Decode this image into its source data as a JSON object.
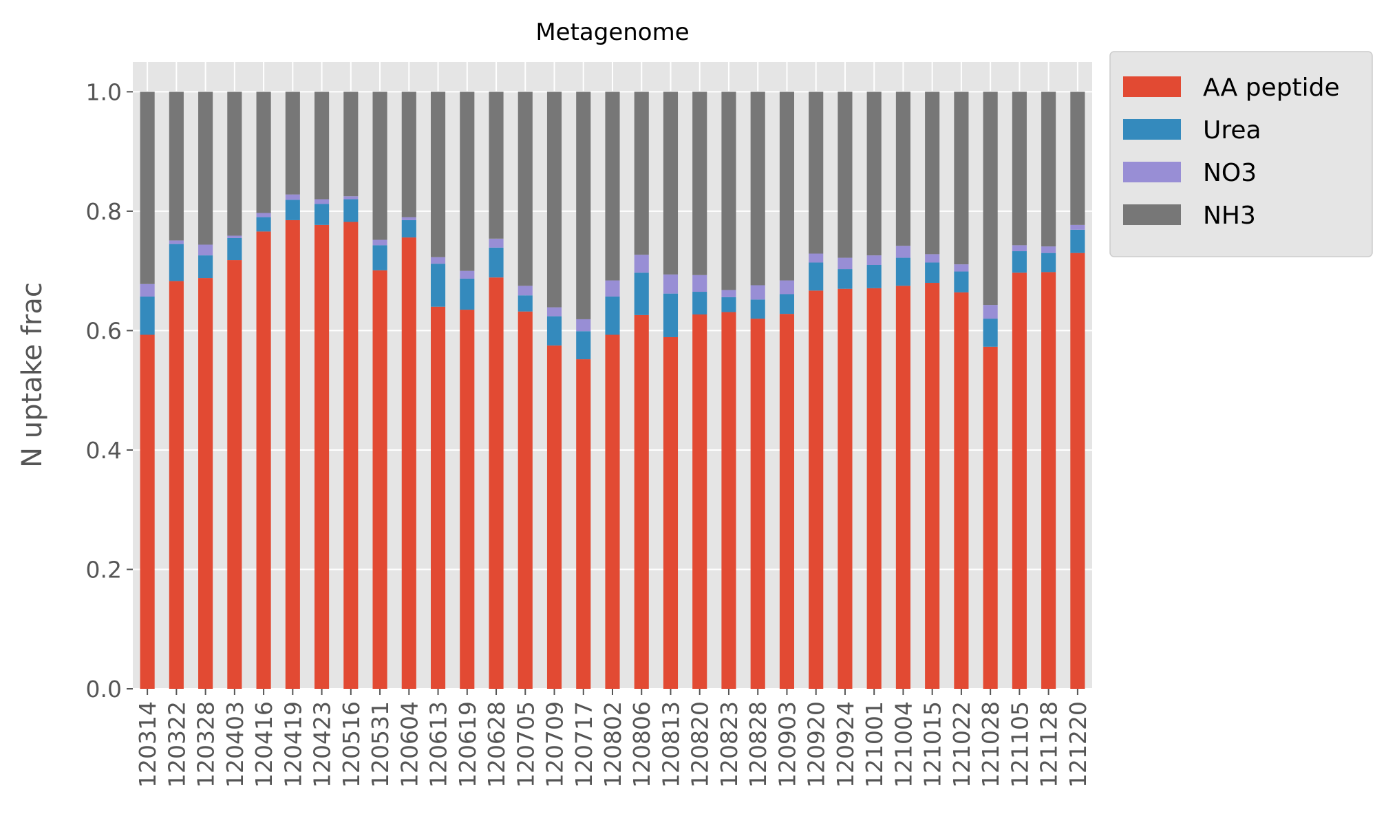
{
  "chart_data": {
    "type": "bar",
    "stacked": true,
    "title": "Metagenome",
    "xlabel": "",
    "ylabel": "N uptake frac",
    "ylim": [
      0,
      1.05
    ],
    "yticks": [
      "0.0",
      "0.2",
      "0.4",
      "0.6",
      "0.8",
      "1.0"
    ],
    "grid": true,
    "legend_position": "outside-top-right",
    "categories": [
      "120314",
      "120322",
      "120328",
      "120403",
      "120416",
      "120419",
      "120423",
      "120516",
      "120531",
      "120604",
      "120613",
      "120619",
      "120628",
      "120705",
      "120709",
      "120717",
      "120802",
      "120806",
      "120813",
      "120820",
      "120823",
      "120828",
      "120903",
      "120920",
      "120924",
      "121001",
      "121004",
      "121015",
      "121022",
      "121028",
      "121105",
      "121128",
      "121220"
    ],
    "series": [
      {
        "name": "AA peptide",
        "color": "#E24A33",
        "values": [
          0.593,
          0.683,
          0.688,
          0.718,
          0.766,
          0.785,
          0.777,
          0.782,
          0.701,
          0.756,
          0.64,
          0.635,
          0.689,
          0.632,
          0.575,
          0.552,
          0.593,
          0.626,
          0.589,
          0.627,
          0.631,
          0.62,
          0.628,
          0.667,
          0.67,
          0.671,
          0.675,
          0.68,
          0.664,
          0.573,
          0.697,
          0.698,
          0.73
        ]
      },
      {
        "name": "Urea",
        "color": "#348ABD",
        "values": [
          0.064,
          0.062,
          0.038,
          0.037,
          0.024,
          0.034,
          0.035,
          0.038,
          0.042,
          0.029,
          0.072,
          0.052,
          0.05,
          0.027,
          0.049,
          0.047,
          0.064,
          0.071,
          0.073,
          0.038,
          0.025,
          0.032,
          0.033,
          0.047,
          0.033,
          0.039,
          0.047,
          0.034,
          0.035,
          0.047,
          0.036,
          0.032,
          0.039
        ]
      },
      {
        "name": "NO3",
        "color": "#988ED5",
        "values": [
          0.021,
          0.006,
          0.018,
          0.004,
          0.007,
          0.009,
          0.008,
          0.005,
          0.009,
          0.005,
          0.011,
          0.013,
          0.015,
          0.016,
          0.015,
          0.02,
          0.027,
          0.03,
          0.032,
          0.028,
          0.012,
          0.024,
          0.023,
          0.015,
          0.019,
          0.016,
          0.02,
          0.014,
          0.012,
          0.023,
          0.01,
          0.011,
          0.008
        ]
      },
      {
        "name": "NH3",
        "color": "#777777",
        "values": [
          0.322,
          0.249,
          0.256,
          0.241,
          0.203,
          0.172,
          0.18,
          0.175,
          0.248,
          0.21,
          0.277,
          0.3,
          0.246,
          0.325,
          0.361,
          0.381,
          0.316,
          0.273,
          0.306,
          0.307,
          0.332,
          0.324,
          0.316,
          0.271,
          0.278,
          0.274,
          0.258,
          0.272,
          0.289,
          0.357,
          0.257,
          0.259,
          0.223
        ]
      }
    ]
  }
}
